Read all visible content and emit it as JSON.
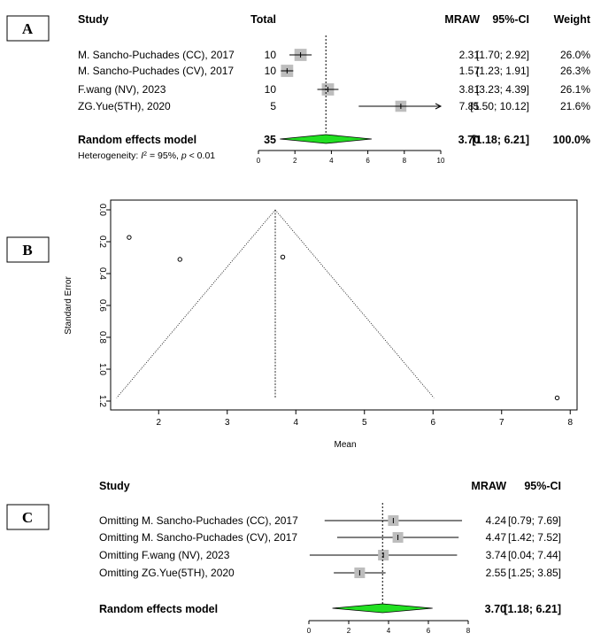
{
  "panel_labels": [
    "A",
    "B",
    "C"
  ],
  "chart_data": [
    {
      "type": "forest",
      "panel": "A",
      "headers": {
        "study": "Study",
        "total": "Total",
        "mraw": "MRAW",
        "ci": "95%-CI",
        "weight": "Weight"
      },
      "studies": [
        {
          "study": "M. Sancho-Puchades (CC), 2017",
          "total": "10",
          "mraw": "2.31",
          "ci": "[1.70; 2.92]",
          "weight": "26.0%",
          "mean": 2.31,
          "lower": 1.7,
          "upper": 2.92,
          "w": 26.0
        },
        {
          "study": "M. Sancho-Puchades (CV), 2017",
          "total": "10",
          "mraw": "1.57",
          "ci": "[1.23; 1.91]",
          "weight": "26.3%",
          "mean": 1.57,
          "lower": 1.23,
          "upper": 1.91,
          "w": 26.3
        },
        {
          "study": "F.wang (NV), 2023",
          "total": "10",
          "mraw": "3.81",
          "ci": "[3.23; 4.39]",
          "weight": "26.1%",
          "mean": 3.81,
          "lower": 3.23,
          "upper": 4.39,
          "w": 26.1
        },
        {
          "study": "ZG.Yue(5TH), 2020",
          "total": "5",
          "mraw": "7.81",
          "ci": "[5.50; 10.12]",
          "weight": "21.6%",
          "mean": 7.81,
          "lower": 5.5,
          "upper": 10.12,
          "w": 21.6
        }
      ],
      "summary": {
        "label": "Random effects model",
        "total": "35",
        "mraw": "3.70",
        "ci": "[1.18; 6.21]",
        "weight": "100.0%",
        "mean": 3.7,
        "lower": 1.18,
        "upper": 6.21,
        "color": "#22e022"
      },
      "heterogeneity": {
        "prefix": "Heterogeneity: ",
        "i2_label": "I",
        "i2_rest": " = 95%, ",
        "p_label": "p",
        "p_rest": " < 0.01"
      },
      "xlim": [
        0,
        10
      ],
      "xticks": [
        0,
        2,
        4,
        6,
        8,
        10
      ]
    },
    {
      "type": "scatter",
      "panel": "B",
      "xlabel": "Mean",
      "ylabel": "Standard Error",
      "xlim": [
        1.3,
        8.1
      ],
      "ylim": [
        1.2,
        0.0
      ],
      "xticks": [
        2,
        3,
        4,
        5,
        6,
        7,
        8
      ],
      "yticks": [
        "0.0",
        "0.2",
        "0.4",
        "0.6",
        "0.8",
        "1.0",
        "1.2"
      ],
      "points": [
        {
          "x": 1.57,
          "y": 0.173
        },
        {
          "x": 2.31,
          "y": 0.311
        },
        {
          "x": 3.81,
          "y": 0.296
        },
        {
          "x": 7.81,
          "y": 1.18
        }
      ],
      "center": 3.7,
      "funnel_bottom": 1.18
    },
    {
      "type": "forest",
      "panel": "C",
      "headers": {
        "study": "Study",
        "mraw": "MRAW",
        "ci": "95%-CI"
      },
      "studies": [
        {
          "study": "Omitting M. Sancho-Puchades (CC), 2017",
          "mraw": "4.24",
          "ci": "[0.79; 7.69]",
          "mean": 4.24,
          "lower": 0.79,
          "upper": 7.69
        },
        {
          "study": "Omitting M. Sancho-Puchades (CV), 2017",
          "mraw": "4.47",
          "ci": "[1.42; 7.52]",
          "mean": 4.47,
          "lower": 1.42,
          "upper": 7.52
        },
        {
          "study": "Omitting F.wang (NV), 2023",
          "mraw": "3.74",
          "ci": "[0.04; 7.44]",
          "mean": 3.74,
          "lower": 0.04,
          "upper": 7.44
        },
        {
          "study": "Omitting ZG.Yue(5TH), 2020",
          "mraw": "2.55",
          "ci": "[1.25; 3.85]",
          "mean": 2.55,
          "lower": 1.25,
          "upper": 3.85
        }
      ],
      "summary": {
        "label": "Random effects model",
        "mraw": "3.70",
        "ci": "[1.18; 6.21]",
        "mean": 3.7,
        "lower": 1.18,
        "upper": 6.21,
        "color": "#22e022"
      },
      "xlim": [
        0,
        8
      ],
      "xticks": [
        0,
        2,
        4,
        6,
        8
      ]
    }
  ]
}
